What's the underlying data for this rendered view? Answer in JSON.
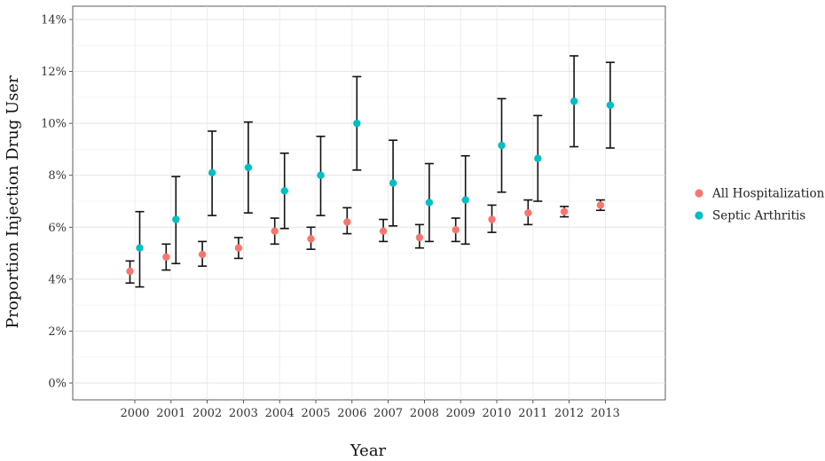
{
  "chart_data": {
    "type": "scatter",
    "xlabel": "Year",
    "ylabel": "Proportion Injection Drug User",
    "categories": [
      "2000",
      "2001",
      "2002",
      "2003",
      "2004",
      "2005",
      "2006",
      "2007",
      "2008",
      "2009",
      "2010",
      "2011",
      "2012",
      "2013"
    ],
    "ylim": [
      0,
      14
    ],
    "y_ticks": [
      0,
      2,
      4,
      6,
      8,
      10,
      12,
      14
    ],
    "y_tick_labels": [
      "0%",
      "2%",
      "4%",
      "6%",
      "8%",
      "10%",
      "12%",
      "14%"
    ],
    "grid": true,
    "legend_position": "right",
    "error_bars": true,
    "series": [
      {
        "name": "All Hospitalizations",
        "color": "#F8766D",
        "values": [
          4.3,
          4.85,
          4.95,
          5.2,
          5.85,
          5.55,
          6.2,
          5.85,
          5.6,
          5.9,
          6.3,
          6.55,
          6.6,
          6.85
        ],
        "lower": [
          3.85,
          4.35,
          4.5,
          4.8,
          5.35,
          5.15,
          5.75,
          5.45,
          5.2,
          5.45,
          5.8,
          6.1,
          6.4,
          6.65
        ],
        "upper": [
          4.7,
          5.35,
          5.45,
          5.6,
          6.35,
          6.0,
          6.75,
          6.3,
          6.1,
          6.35,
          6.85,
          7.05,
          6.8,
          7.05
        ]
      },
      {
        "name": "Septic Arthritis",
        "color": "#00BFC4",
        "values": [
          5.2,
          6.3,
          8.1,
          8.3,
          7.4,
          8.0,
          10.0,
          7.7,
          6.95,
          7.05,
          9.15,
          8.65,
          10.85,
          10.7
        ],
        "lower": [
          3.7,
          4.6,
          6.45,
          6.55,
          5.95,
          6.45,
          8.2,
          6.05,
          5.45,
          5.35,
          7.35,
          7.0,
          9.1,
          9.05
        ],
        "upper": [
          6.6,
          7.95,
          9.7,
          10.05,
          8.85,
          9.5,
          11.8,
          9.35,
          8.45,
          8.75,
          10.95,
          10.3,
          12.6,
          12.35
        ]
      }
    ]
  }
}
